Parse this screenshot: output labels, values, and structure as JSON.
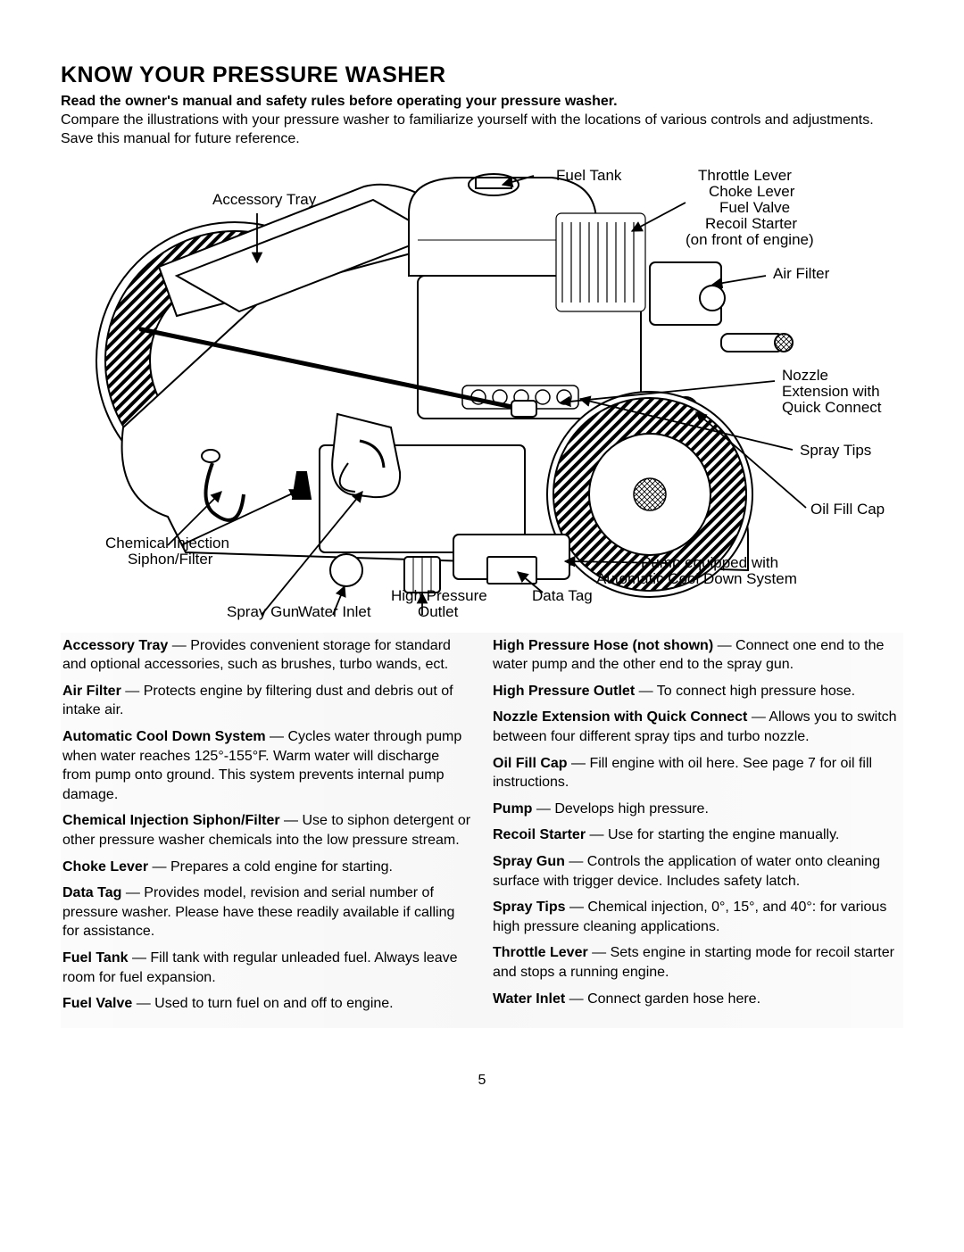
{
  "title": "KNOW YOUR PRESSURE WASHER",
  "subtitle": "Read the owner's manual and safety rules before operating your pressure washer.",
  "intro": "Compare the illustrations with your pressure washer to familiarize yourself with the locations of various controls and adjustments. Save this manual for future reference.",
  "pagenum": "5",
  "labels": {
    "accessory_tray": "Accessory Tray",
    "fuel_tank": "Fuel Tank",
    "throttle_group_1": "Throttle Lever",
    "throttle_group_2": "Choke Lever",
    "throttle_group_3": "Fuel Valve",
    "throttle_group_4": "Recoil Starter",
    "throttle_group_5": "(on front of engine)",
    "air_filter": "Air Filter",
    "nozzle_1": "Nozzle",
    "nozzle_2": "Extension with",
    "nozzle_3": "Quick Connect",
    "spray_tips": "Spray Tips",
    "oil_fill_cap": "Oil Fill Cap",
    "pump_1": "Pump equipped with",
    "pump_2": "Automatic Cool Down System",
    "data_tag": "Data Tag",
    "high_pressure_1": "High Pressure",
    "high_pressure_2": "Outlet",
    "water_inlet": "Water Inlet",
    "spray_gun": "Spray Gun",
    "chem_1": "Chemical Injection",
    "chem_2": "Siphon/Filter"
  },
  "diagram": {
    "stroke": "#000000",
    "fill": "#ffffff",
    "hatch": "#000000"
  },
  "defs_left": [
    {
      "term": "Accessory Tray",
      "desc": "Provides convenient storage for standard and optional accessories, such as brushes, turbo wands, ect."
    },
    {
      "term": "Air Filter",
      "desc": "Protects engine by filtering dust and debris out of intake air."
    },
    {
      "term": "Automatic Cool Down System",
      "desc": "Cycles water through pump when water reaches 125°-155°F. Warm water will discharge from pump onto ground. This system prevents internal pump damage."
    },
    {
      "term": "Chemical Injection Siphon/Filter",
      "desc": "Use to siphon detergent or other pressure washer chemicals into the low pressure stream."
    },
    {
      "term": "Choke Lever",
      "desc": "Prepares a cold engine for starting."
    },
    {
      "term": "Data Tag",
      "desc": "Provides model, revision and serial number of pressure washer. Please have these readily available if calling for assistance."
    },
    {
      "term": "Fuel Tank",
      "desc": "Fill tank with regular unleaded fuel. Always leave room for fuel expansion."
    },
    {
      "term": "Fuel Valve",
      "desc": "Used to turn fuel on and off to engine."
    }
  ],
  "defs_right": [
    {
      "term": "High Pressure Hose (not shown)",
      "desc": "Connect one end to the water pump and the other end to the spray gun."
    },
    {
      "term": "High Pressure Outlet",
      "desc": "To connect high pressure hose."
    },
    {
      "term": "Nozzle Extension with Quick Connect",
      "desc": "Allows you to switch between four different spray tips and turbo nozzle."
    },
    {
      "term": "Oil Fill Cap",
      "desc": "Fill engine with oil here. See page 7 for oil fill instructions."
    },
    {
      "term": "Pump",
      "desc": "Develops high pressure."
    },
    {
      "term": "Recoil Starter",
      "desc": "Use for starting the engine manually."
    },
    {
      "term": "Spray Gun",
      "desc": "Controls the application of water onto cleaning surface with trigger device. Includes safety latch."
    },
    {
      "term": "Spray Tips",
      "desc": "Chemical injection, 0°, 15°, and 40°: for various high pressure cleaning applications."
    },
    {
      "term": "Throttle Lever",
      "desc": "Sets engine in starting mode for recoil starter and stops a running engine."
    },
    {
      "term": "Water Inlet",
      "desc": "Connect garden hose here."
    }
  ]
}
